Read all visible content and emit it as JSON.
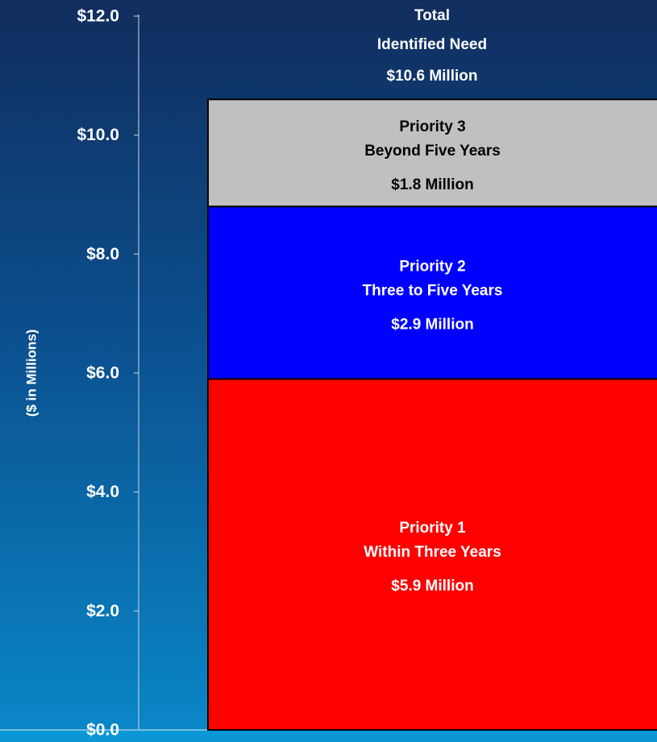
{
  "chart_data": {
    "type": "stacked_bar",
    "y_axis_label": "($ in Millions)",
    "ylim": [
      0,
      12
    ],
    "yticks": [
      {
        "value": 0,
        "label": "$0.0"
      },
      {
        "value": 2,
        "label": "$2.0"
      },
      {
        "value": 4,
        "label": "$4.0"
      },
      {
        "value": 6,
        "label": "$6.0"
      },
      {
        "value": 8,
        "label": "$8.0"
      },
      {
        "value": 10,
        "label": "$10.0"
      },
      {
        "value": 12,
        "label": "$12.0"
      }
    ],
    "series": [
      {
        "name": "Priority 1",
        "subtitle": "Within Three Years",
        "color": "#ff0000",
        "label_color": "#ffffff",
        "values": [
          5.9
        ],
        "value_labels": [
          "$5.9  Million"
        ]
      },
      {
        "name": "Priority 2",
        "subtitle": "Three to Five Years",
        "color": "#0000ff",
        "label_color": "#ffffff",
        "values": [
          2.9
        ],
        "value_labels": [
          "$2.9  Million"
        ]
      },
      {
        "name": "Priority 3",
        "subtitle": "Beyond Five Years",
        "color": "#c0c0c0",
        "label_color": "#000000",
        "values": [
          1.8
        ],
        "value_labels": [
          "$1.8  Million"
        ]
      }
    ],
    "annotations": [
      "Total",
      "Identified Need",
      "$10.6  Million"
    ]
  }
}
